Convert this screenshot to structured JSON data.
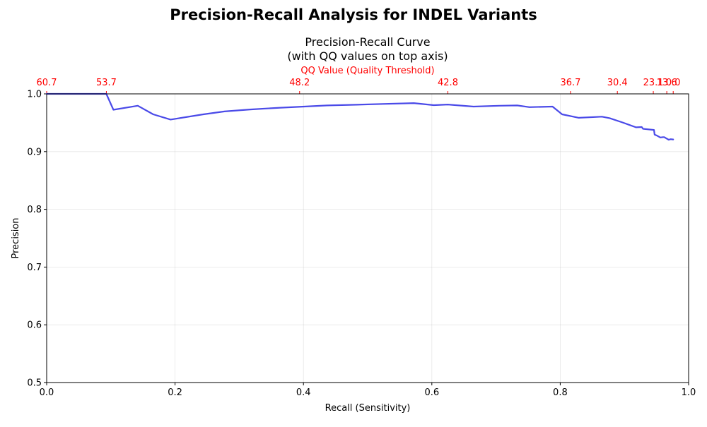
{
  "figure": {
    "suptitle": "Precision-Recall Analysis for INDEL Variants"
  },
  "chart_data": {
    "type": "line",
    "title_line1": "Precision-Recall Curve",
    "title_line2": "(with QQ values on top axis)",
    "xlabel": "Recall (Sensitivity)",
    "ylabel": "Precision",
    "top_xlabel": "QQ Value (Quality Threshold)",
    "xlim": [
      0.0,
      1.0
    ],
    "ylim": [
      0.5,
      1.0
    ],
    "xticks": [
      0.0,
      0.2,
      0.4,
      0.6,
      0.8,
      1.0
    ],
    "xtick_labels": [
      "0.0",
      "0.2",
      "0.4",
      "0.6",
      "0.8",
      "1.0"
    ],
    "yticks": [
      0.5,
      0.6,
      0.7,
      0.8,
      0.9,
      1.0
    ],
    "ytick_labels": [
      "0.5",
      "0.6",
      "0.7",
      "0.8",
      "0.9",
      "1.0"
    ],
    "grid": true,
    "line_color": "#4a4ae8",
    "top_axis_color": "#ff0000",
    "top_ticks": [
      {
        "recall": 0.0,
        "label": "60.7"
      },
      {
        "recall": 0.093,
        "label": "53.7"
      },
      {
        "recall": 0.394,
        "label": "48.2"
      },
      {
        "recall": 0.625,
        "label": "42.8"
      },
      {
        "recall": 0.816,
        "label": "36.7"
      },
      {
        "recall": 0.889,
        "label": "30.4"
      },
      {
        "recall": 0.945,
        "label": "23.1"
      },
      {
        "recall": 0.966,
        "label": "13.6"
      },
      {
        "recall": 0.976,
        "label": "0.0"
      }
    ],
    "series": [
      {
        "x": [
          0.0,
          0.093,
          0.104,
          0.142,
          0.166,
          0.193,
          0.244,
          0.277,
          0.317,
          0.364,
          0.401,
          0.437,
          0.477,
          0.523,
          0.572,
          0.603,
          0.625,
          0.665,
          0.705,
          0.733,
          0.752,
          0.788,
          0.803,
          0.829,
          0.865,
          0.877,
          0.897,
          0.918,
          0.927,
          0.929,
          0.946,
          0.947,
          0.951,
          0.956,
          0.96,
          0.962,
          0.966,
          0.969,
          0.972,
          0.976
        ],
        "y": [
          1.0,
          1.0,
          0.9725,
          0.9795,
          0.9645,
          0.9555,
          0.9645,
          0.9695,
          0.973,
          0.976,
          0.978,
          0.98,
          0.981,
          0.9825,
          0.984,
          0.9805,
          0.9815,
          0.978,
          0.9795,
          0.98,
          0.977,
          0.978,
          0.9645,
          0.9585,
          0.9605,
          0.958,
          0.9505,
          0.942,
          0.9425,
          0.9395,
          0.9375,
          0.9295,
          0.9275,
          0.9245,
          0.925,
          0.925,
          0.9225,
          0.9205,
          0.9215,
          0.921
        ]
      }
    ]
  }
}
